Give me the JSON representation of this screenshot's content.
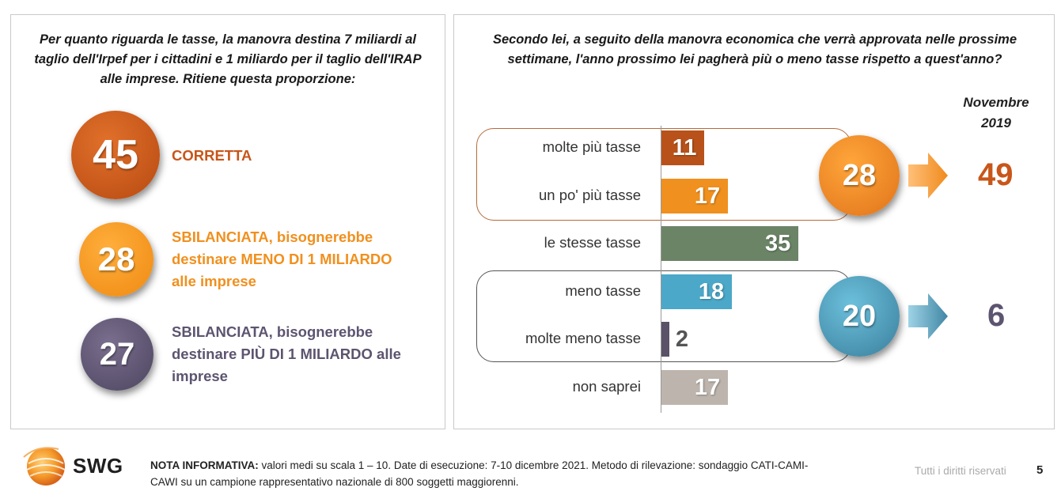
{
  "left": {
    "question": "Per quanto riguarda le tasse, la manovra destina 7 miliardi al taglio dell'Irpef per i cittadini e 1 miliardo per il taglio dell'IRAP alle imprese. Ritiene questa proporzione:",
    "options": [
      {
        "value": "45",
        "label": "CORRETTA",
        "color": "#c8561a"
      },
      {
        "value": "28",
        "label": "SBILANCIATA, bisognerebbe destinare MENO DI 1 MILIARDO alle imprese",
        "color": "#f0901e"
      },
      {
        "value": "27",
        "label": "SBILANCIATA, bisognerebbe destinare PIÙ DI 1 MILIARDO alle imprese",
        "color": "#5d5470"
      }
    ]
  },
  "right": {
    "question": "Secondo lei, a seguito della manovra economica che verrà approvata nelle prossime settimane, l'anno prossimo lei pagherà più o meno tasse rispetto a quest'anno?",
    "prev_header": "Novembre 2019",
    "more_sum": "28",
    "less_sum": "20",
    "prev_more": "49",
    "prev_less": "6"
  },
  "chart_data": {
    "type": "bar",
    "orientation": "horizontal",
    "categories": [
      "molte più tasse",
      "un po' più tasse",
      "le stesse tasse",
      "meno tasse",
      "molte meno tasse",
      "non saprei"
    ],
    "values": [
      11,
      17,
      35,
      18,
      2,
      17
    ],
    "colors": [
      "#b8521a",
      "#f0901e",
      "#6b8466",
      "#4ba8c8",
      "#5a5268",
      "#bdb5ad"
    ],
    "groups": [
      {
        "categories": [
          "molte più tasse",
          "un po' più tasse"
        ],
        "total": 28,
        "previous": 49
      },
      {
        "categories": [
          "meno tasse",
          "molte meno tasse"
        ],
        "total": 20,
        "previous": 6
      }
    ]
  },
  "footer": {
    "brand": "SWG",
    "note_bold": "NOTA INFORMATIVA:",
    "note_text": " valori medi su scala 1 – 10. Date di esecuzione: 7-10 dicembre 2021. Metodo di rilevazione: sondaggio CATI-CAMI-CAWI su un campione rappresentativo nazionale di 800 soggetti maggiorenni.",
    "rights": "Tutti i diritti riservati",
    "page": "5"
  }
}
